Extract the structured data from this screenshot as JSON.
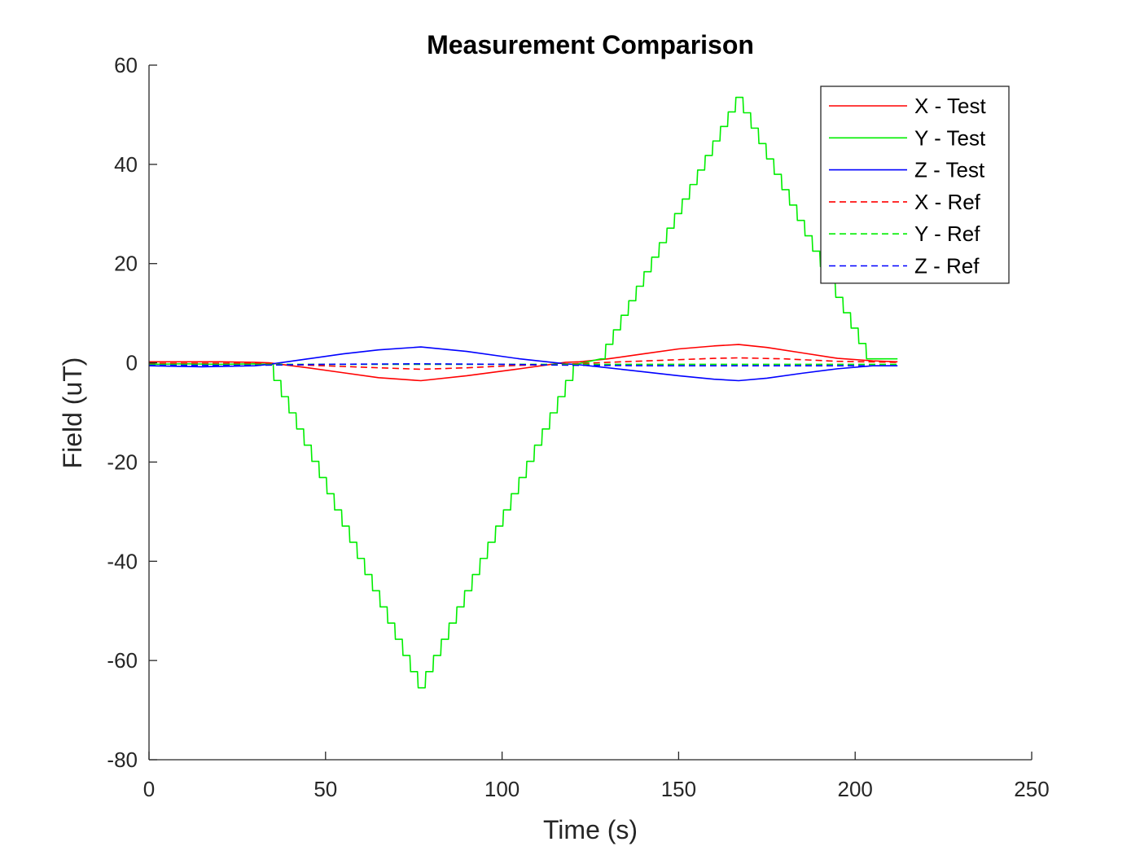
{
  "chart_data": {
    "type": "line",
    "title": "Measurement Comparison",
    "xlabel": "Time (s)",
    "ylabel": "Field (uT)",
    "xlim": [
      0,
      250
    ],
    "ylim": [
      -80,
      60
    ],
    "xticks": [
      0,
      50,
      100,
      150,
      200,
      250
    ],
    "yticks": [
      -80,
      -60,
      -40,
      -20,
      0,
      20,
      40,
      60
    ],
    "xtick_labels": [
      "0",
      "50",
      "100",
      "150",
      "200",
      "250"
    ],
    "ytick_labels": [
      "-80",
      "-60",
      "-40",
      "-20",
      "0",
      "20",
      "40",
      "60"
    ],
    "grid": false,
    "legend_position": "top-right",
    "series": [
      {
        "name": "X - Test",
        "color": "#ff0000",
        "style": "solid",
        "stepped": false,
        "x": [
          0,
          10,
          20,
          30,
          34,
          45,
          55,
          65,
          77,
          90,
          105,
          118,
          122,
          130,
          140,
          150,
          160,
          167,
          175,
          185,
          195,
          205,
          212
        ],
        "y": [
          0.2,
          0.2,
          0.2,
          0.1,
          0,
          -1,
          -2,
          -3,
          -3.6,
          -2.6,
          -1.2,
          0.1,
          0.2,
          0.8,
          1.8,
          2.8,
          3.4,
          3.7,
          3.1,
          2.0,
          0.9,
          0.4,
          0.2
        ]
      },
      {
        "name": "Y - Test",
        "color": "#00ee00",
        "style": "solid",
        "stepped": true,
        "x": [
          0,
          10,
          20,
          30,
          34,
          77,
          121,
          128,
          167,
          204,
          212
        ],
        "y": [
          -0.3,
          -0.2,
          -0.3,
          -0.2,
          -0.3,
          -65.5,
          -0.3,
          0.8,
          53.5,
          0.8,
          0.8
        ]
      },
      {
        "name": "Z - Test",
        "color": "#0000ff",
        "style": "solid",
        "stepped": false,
        "x": [
          0,
          15,
          30,
          34,
          45,
          55,
          65,
          77,
          90,
          105,
          118,
          122,
          130,
          140,
          150,
          160,
          167,
          175,
          185,
          195,
          205,
          212
        ],
        "y": [
          -0.6,
          -0.8,
          -0.6,
          -0.3,
          0.8,
          1.8,
          2.6,
          3.2,
          2.3,
          0.8,
          -0.2,
          -0.4,
          -1.0,
          -1.8,
          -2.6,
          -3.3,
          -3.6,
          -3.1,
          -2.1,
          -1.2,
          -0.6,
          -0.6
        ]
      },
      {
        "name": "X - Ref",
        "color": "#ff0000",
        "style": "dashed",
        "stepped": false,
        "x": [
          0,
          15,
          30,
          34,
          50,
          65,
          77,
          90,
          105,
          120,
          130,
          145,
          160,
          167,
          180,
          195,
          212
        ],
        "y": [
          -0.1,
          -0.1,
          -0.1,
          -0.2,
          -0.6,
          -1.0,
          -1.3,
          -1.0,
          -0.5,
          -0.2,
          0.1,
          0.5,
          0.9,
          1.0,
          0.8,
          0.3,
          0.1
        ]
      },
      {
        "name": "Y - Ref",
        "color": "#00ee00",
        "style": "dashed",
        "stepped": false,
        "x": [
          0,
          34,
          77,
          121,
          167,
          212
        ],
        "y": [
          -0.3,
          -0.3,
          -0.3,
          -0.3,
          -0.3,
          -0.3
        ]
      },
      {
        "name": "Z - Ref",
        "color": "#0000ff",
        "style": "dashed",
        "stepped": false,
        "x": [
          0,
          30,
          50,
          77,
          100,
          121,
          145,
          167,
          190,
          212
        ],
        "y": [
          -0.5,
          -0.5,
          -0.3,
          -0.2,
          -0.3,
          -0.5,
          -0.6,
          -0.6,
          -0.6,
          -0.6
        ]
      }
    ]
  }
}
